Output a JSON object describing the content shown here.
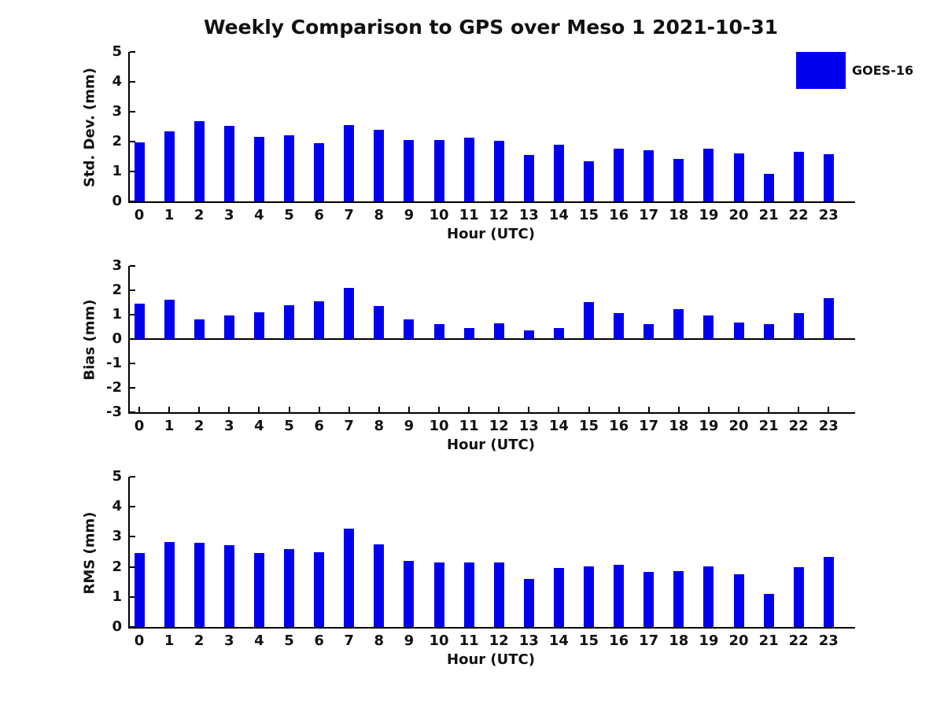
{
  "figure_title": "Weekly Comparison to GPS over Meso 1 2021-10-31",
  "legend": {
    "label": "GOES-16",
    "color": "#0000ee"
  },
  "chart_data": [
    {
      "type": "bar",
      "title": "Weekly Comparison to GPS over Meso 1 2021-10-31",
      "ylabel": "Std. Dev. (mm)",
      "xlabel": "Hour (UTC)",
      "categories": [
        "0",
        "1",
        "2",
        "3",
        "4",
        "5",
        "6",
        "7",
        "8",
        "9",
        "10",
        "11",
        "12",
        "13",
        "14",
        "15",
        "16",
        "17",
        "18",
        "19",
        "20",
        "21",
        "22",
        "23"
      ],
      "yticks": [
        "5",
        "4",
        "3",
        "2",
        "1",
        "0"
      ],
      "ylim": [
        0,
        5
      ],
      "grid": false,
      "legend_position": "outside-upper-right",
      "series": [
        {
          "name": "GOES-16",
          "color": "#0000ee",
          "values": [
            1.98,
            2.33,
            2.68,
            2.53,
            2.17,
            2.2,
            1.94,
            2.55,
            2.4,
            2.04,
            2.06,
            2.12,
            2.03,
            1.56,
            1.9,
            1.33,
            1.76,
            1.71,
            1.41,
            1.77,
            1.61,
            0.92,
            1.66,
            1.59
          ]
        }
      ]
    },
    {
      "type": "bar",
      "title": "",
      "ylabel": "Bias (mm)",
      "xlabel": "Hour (UTC)",
      "categories": [
        "0",
        "1",
        "2",
        "3",
        "4",
        "5",
        "6",
        "7",
        "8",
        "9",
        "10",
        "11",
        "12",
        "13",
        "14",
        "15",
        "16",
        "17",
        "18",
        "19",
        "20",
        "21",
        "22",
        "23"
      ],
      "yticks": [
        "3",
        "2",
        "1",
        "0",
        "-1",
        "-2",
        "-3"
      ],
      "ylim": [
        -3,
        3
      ],
      "grid": false,
      "series": [
        {
          "name": "GOES-16",
          "color": "#0000ee",
          "values": [
            1.45,
            1.6,
            0.8,
            0.97,
            1.1,
            1.38,
            1.56,
            2.1,
            1.34,
            0.8,
            0.62,
            0.45,
            0.66,
            0.34,
            0.45,
            1.53,
            1.07,
            0.61,
            1.22,
            0.97,
            0.67,
            0.6,
            1.07,
            1.67
          ]
        }
      ]
    },
    {
      "type": "bar",
      "title": "",
      "ylabel": "RMS (mm)",
      "xlabel": "Hour (UTC)",
      "categories": [
        "0",
        "1",
        "2",
        "3",
        "4",
        "5",
        "6",
        "7",
        "8",
        "9",
        "10",
        "11",
        "12",
        "13",
        "14",
        "15",
        "16",
        "17",
        "18",
        "19",
        "20",
        "21",
        "22",
        "23"
      ],
      "yticks": [
        "5",
        "4",
        "3",
        "2",
        "1",
        "0"
      ],
      "ylim": [
        0,
        5
      ],
      "grid": false,
      "series": [
        {
          "name": "GOES-16",
          "color": "#0000ee",
          "values": [
            2.45,
            2.83,
            2.79,
            2.71,
            2.45,
            2.6,
            2.5,
            3.28,
            2.76,
            2.2,
            2.15,
            2.15,
            2.15,
            1.6,
            1.96,
            2.02,
            2.08,
            1.82,
            1.87,
            2.02,
            1.76,
            1.11,
            2.0,
            2.32
          ]
        }
      ]
    }
  ]
}
